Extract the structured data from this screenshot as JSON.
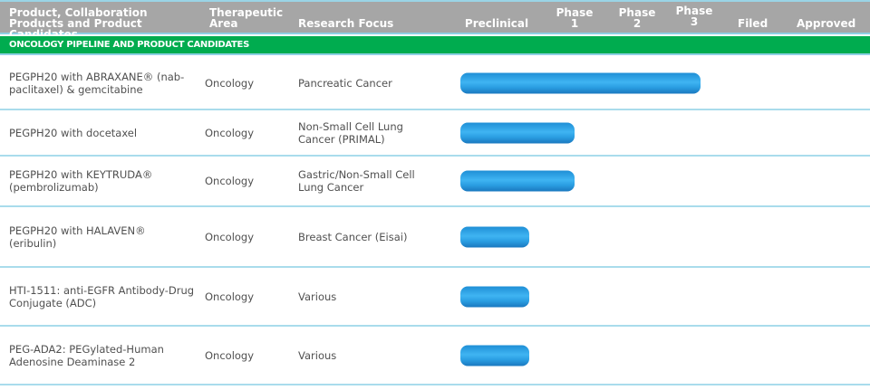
{
  "header": {
    "product": "Product, Collaboration Products and Product Candidates",
    "area": "Therapeutic Area",
    "focus": "Research Focus",
    "stages": [
      "Preclinical",
      "Phase 1",
      "Phase 2",
      "Phase 3",
      "Filed",
      "Approved"
    ]
  },
  "section": "ONCOLOGY PIPELINE AND PRODUCT CANDIDATES",
  "colors": {
    "header": "#a6a6a6",
    "section": "#00ac4f",
    "bar": "#2a9ee2"
  },
  "rows": [
    {
      "product": "PEGPH20 with ABRAXANE® (nab-paclitaxel) & gemcitabine",
      "area": "Oncology",
      "focus": "Pancreatic Cancer",
      "stage": "Phase 3"
    },
    {
      "product": "PEGPH20 with docetaxel",
      "area": "Oncology",
      "focus": "Non-Small Cell Lung Cancer (PRIMAL)",
      "stage": "Phase 1"
    },
    {
      "product": "PEGPH20 with KEYTRUDA® (pembrolizumab)",
      "area": "Oncology",
      "focus": "Gastric/Non-Small Cell Lung Cancer",
      "stage": "Phase 1"
    },
    {
      "product": "PEGPH20 with HALAVEN® (eribulin)",
      "area": "Oncology",
      "focus": "Breast Cancer (Eisai)",
      "stage": "Preclinical"
    },
    {
      "product": "HTI-1511: anti-EGFR Antibody-Drug Conjugate (ADC)",
      "area": "Oncology",
      "focus": "Various",
      "stage": "Preclinical"
    },
    {
      "product": "PEG-ADA2: PEGylated-Human Adenosine Deaminase 2",
      "area": "Oncology",
      "focus": "Various",
      "stage": "Preclinical"
    }
  ]
}
